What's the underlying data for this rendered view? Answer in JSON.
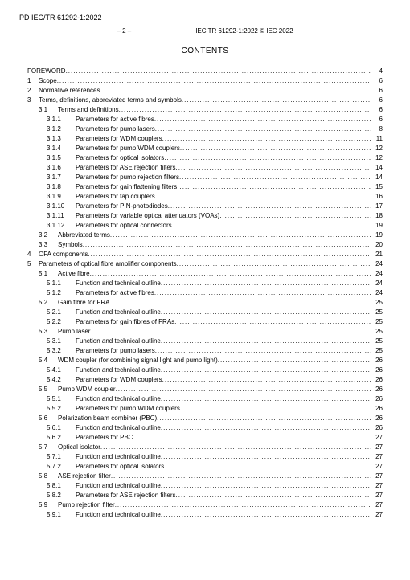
{
  "document_id": "PD IEC/TR 61292-1:2022",
  "page_number_label": "– 2 –",
  "header_right": "IEC TR 61292-1:2022 © IEC 2022",
  "contents_title": "CONTENTS",
  "toc": [
    {
      "level": 0,
      "num": "",
      "title": "FOREWORD",
      "page": "4"
    },
    {
      "level": 1,
      "num": "1",
      "title": "Scope",
      "page": "6"
    },
    {
      "level": 1,
      "num": "2",
      "title": "Normative references",
      "page": "6"
    },
    {
      "level": 1,
      "num": "3",
      "title": "Terms, definitions, abbreviated terms and symbols",
      "page": "6"
    },
    {
      "level": 2,
      "num": "3.1",
      "title": "Terms and definitions",
      "page": "6"
    },
    {
      "level": 3,
      "num": "3.1.1",
      "title": "Parameters for active fibres",
      "page": "6"
    },
    {
      "level": 3,
      "num": "3.1.2",
      "title": "Parameters for pump lasers",
      "page": "8"
    },
    {
      "level": 3,
      "num": "3.1.3",
      "title": "Parameters for WDM couplers",
      "page": "11"
    },
    {
      "level": 3,
      "num": "3.1.4",
      "title": "Parameters for pump WDM couplers",
      "page": "12"
    },
    {
      "level": 3,
      "num": "3.1.5",
      "title": "Parameters for optical isolators",
      "page": "12"
    },
    {
      "level": 3,
      "num": "3.1.6",
      "title": "Parameters for ASE rejection filters",
      "page": "14"
    },
    {
      "level": 3,
      "num": "3.1.7",
      "title": "Parameters for pump rejection filters",
      "page": "14"
    },
    {
      "level": 3,
      "num": "3.1.8",
      "title": "Parameters for gain flattening filters",
      "page": "15"
    },
    {
      "level": 3,
      "num": "3.1.9",
      "title": "Parameters for tap couplers",
      "page": "16"
    },
    {
      "level": 3,
      "num": "3.1.10",
      "title": "Parameters for PIN-photodiodes",
      "page": "17"
    },
    {
      "level": 3,
      "num": "3.1.11",
      "title": "Parameters for variable optical attenuators (VOAs)",
      "page": "18"
    },
    {
      "level": 3,
      "num": "3.1.12",
      "title": "Parameters for optical connectors",
      "page": "19"
    },
    {
      "level": 2,
      "num": "3.2",
      "title": "Abbreviated terms",
      "page": "19"
    },
    {
      "level": 2,
      "num": "3.3",
      "title": "Symbols",
      "page": "20"
    },
    {
      "level": 1,
      "num": "4",
      "title": "OFA components",
      "page": "21"
    },
    {
      "level": 1,
      "num": "5",
      "title": "Parameters of optical fibre amplifier components",
      "page": "24"
    },
    {
      "level": 2,
      "num": "5.1",
      "title": "Active fibre",
      "page": "24"
    },
    {
      "level": 3,
      "num": "5.1.1",
      "title": "Function and technical outline",
      "page": "24"
    },
    {
      "level": 3,
      "num": "5.1.2",
      "title": "Parameters for active fibres",
      "page": "24"
    },
    {
      "level": 2,
      "num": "5.2",
      "title": "Gain fibre for FRA",
      "page": "25"
    },
    {
      "level": 3,
      "num": "5.2.1",
      "title": "Function and technical outline",
      "page": "25"
    },
    {
      "level": 3,
      "num": "5.2.2",
      "title": "Parameters for gain fibres of FRAs",
      "page": "25"
    },
    {
      "level": 2,
      "num": "5.3",
      "title": "Pump laser",
      "page": "25"
    },
    {
      "level": 3,
      "num": "5.3.1",
      "title": "Function and technical outline",
      "page": "25"
    },
    {
      "level": 3,
      "num": "5.3.2",
      "title": "Parameters for pump lasers",
      "page": "25"
    },
    {
      "level": 2,
      "num": "5.4",
      "title": "WDM coupler (for combining signal light and pump light)",
      "page": "26"
    },
    {
      "level": 3,
      "num": "5.4.1",
      "title": "Function and technical outline",
      "page": "26"
    },
    {
      "level": 3,
      "num": "5.4.2",
      "title": "Parameters for WDM couplers",
      "page": "26"
    },
    {
      "level": 2,
      "num": "5.5",
      "title": "Pump WDM coupler",
      "page": "26"
    },
    {
      "level": 3,
      "num": "5.5.1",
      "title": "Function and technical outline",
      "page": "26"
    },
    {
      "level": 3,
      "num": "5.5.2",
      "title": "Parameters for pump WDM couplers",
      "page": "26"
    },
    {
      "level": 2,
      "num": "5.6",
      "title": "Polarization beam combiner (PBC)",
      "page": "26"
    },
    {
      "level": 3,
      "num": "5.6.1",
      "title": "Function and technical outline",
      "page": "26"
    },
    {
      "level": 3,
      "num": "5.6.2",
      "title": "Parameters for PBC",
      "page": "27"
    },
    {
      "level": 2,
      "num": "5.7",
      "title": "Optical isolator",
      "page": "27"
    },
    {
      "level": 3,
      "num": "5.7.1",
      "title": "Function and technical outline",
      "page": "27"
    },
    {
      "level": 3,
      "num": "5.7.2",
      "title": "Parameters for optical isolators",
      "page": "27"
    },
    {
      "level": 2,
      "num": "5.8",
      "title": "ASE rejection filter",
      "page": "27"
    },
    {
      "level": 3,
      "num": "5.8.1",
      "title": "Function and technical outline",
      "page": "27"
    },
    {
      "level": 3,
      "num": "5.8.2",
      "title": "Parameters for ASE rejection filters",
      "page": "27"
    },
    {
      "level": 2,
      "num": "5.9",
      "title": "Pump rejection filter",
      "page": "27"
    },
    {
      "level": 3,
      "num": "5.9.1",
      "title": "Function and technical outline",
      "page": "27"
    }
  ]
}
